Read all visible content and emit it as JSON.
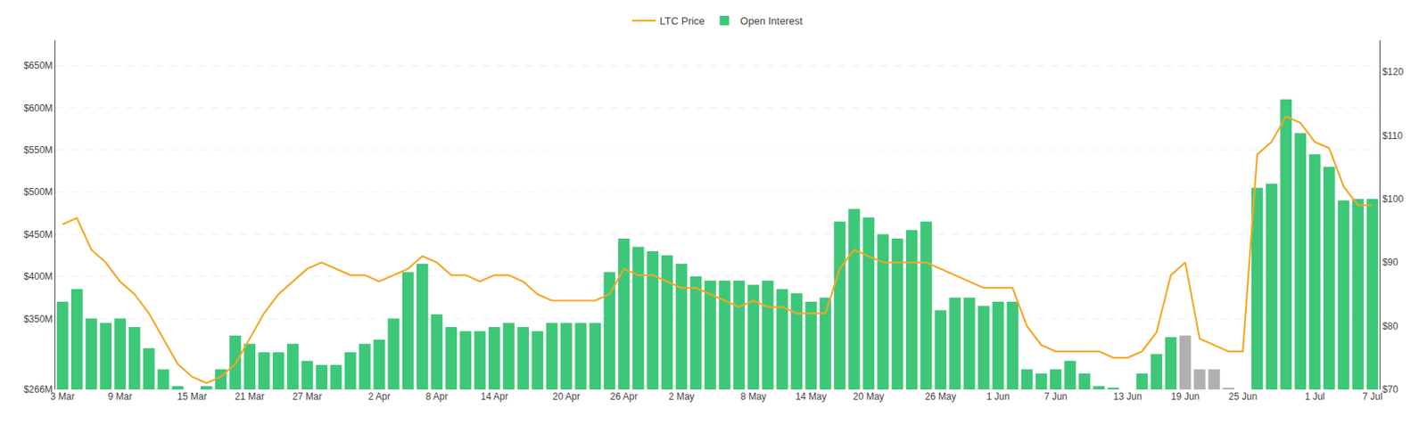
{
  "chart_data": {
    "type": "bar",
    "categories": [
      "3 Mar",
      null,
      null,
      null,
      "9 Mar",
      null,
      null,
      null,
      null,
      "15 Mar",
      null,
      null,
      null,
      "21 Mar",
      null,
      null,
      null,
      "27 Mar",
      null,
      null,
      null,
      null,
      "2 Apr",
      null,
      null,
      null,
      "8 Apr",
      null,
      null,
      null,
      "14 Apr",
      null,
      null,
      null,
      null,
      "20 Apr",
      null,
      null,
      null,
      "26 Apr",
      null,
      null,
      null,
      "2 May",
      null,
      null,
      null,
      null,
      "8 May",
      null,
      null,
      null,
      "14 May",
      null,
      null,
      null,
      "20 May",
      null,
      null,
      null,
      null,
      "26 May",
      null,
      null,
      null,
      "1 Jun",
      null,
      null,
      null,
      "7 Jun",
      null,
      null,
      null,
      null,
      "13 Jun",
      null,
      null,
      null,
      "19 Jun",
      null,
      null,
      null,
      "25 Jun",
      null,
      null,
      null,
      null,
      "1 Jul",
      null,
      null,
      null,
      "7 Jul"
    ],
    "series": [
      {
        "name": "LTC Price",
        "type": "line",
        "axis": "y2",
        "color": "#f5a623",
        "values": [
          96,
          97,
          92,
          90,
          87,
          85,
          82,
          78,
          74,
          72,
          71,
          72,
          74,
          78,
          82,
          85,
          87,
          89,
          90,
          89,
          88,
          88,
          87,
          88,
          89,
          91,
          90,
          88,
          88,
          87,
          88,
          88,
          87,
          85,
          84,
          84,
          84,
          84,
          85,
          89,
          88,
          88,
          87,
          86,
          86,
          85,
          84,
          83,
          84,
          83,
          83,
          82,
          82,
          82,
          89,
          92,
          91,
          90,
          90,
          90,
          90,
          89,
          88,
          87,
          86,
          86,
          86,
          80,
          77,
          76,
          76,
          76,
          76,
          75,
          75,
          76,
          79,
          88,
          90,
          78,
          77,
          76,
          76,
          107,
          109,
          113,
          112,
          109,
          108,
          102,
          99,
          99
        ]
      },
      {
        "name": "Open Interest",
        "type": "bar",
        "colors": [
          "#3cc878",
          "#3cc878",
          "#3cc878",
          "#3cc878",
          "#3cc878",
          "#3cc878",
          "#3cc878",
          "#3cc878",
          "#3cc878",
          "#3cc878",
          "#3cc878",
          "#3cc878",
          "#3cc878",
          "#3cc878",
          "#3cc878",
          "#3cc878",
          "#3cc878",
          "#3cc878",
          "#3cc878",
          "#3cc878",
          "#3cc878",
          "#3cc878",
          "#3cc878",
          "#3cc878",
          "#3cc878",
          "#3cc878",
          "#3cc878",
          "#3cc878",
          "#3cc878",
          "#3cc878",
          "#3cc878",
          "#3cc878",
          "#3cc878",
          "#3cc878",
          "#3cc878",
          "#3cc878",
          "#3cc878",
          "#3cc878",
          "#3cc878",
          "#3cc878",
          "#3cc878",
          "#3cc878",
          "#3cc878",
          "#3cc878",
          "#3cc878",
          "#3cc878",
          "#3cc878",
          "#3cc878",
          "#3cc878",
          "#3cc878",
          "#3cc878",
          "#3cc878",
          "#3cc878",
          "#3cc878",
          "#3cc878",
          "#3cc878",
          "#3cc878",
          "#3cc878",
          "#3cc878",
          "#3cc878",
          "#3cc878",
          "#3cc878",
          "#3cc878",
          "#3cc878",
          "#3cc878",
          "#3cc878",
          "#3cc878",
          "#3cc878",
          "#3cc878",
          "#3cc878",
          "#3cc878",
          "#3cc878",
          "#3cc878",
          "#3cc878",
          "#3cc878",
          "#3cc878",
          "#3cc878",
          "#3cc878",
          "#b0b0b0",
          "#b0b0b0",
          "#b0b0b0",
          "#b0b0b0",
          "#3cc878",
          "#3cc878",
          "#3cc878",
          "#3cc878",
          "#3cc878",
          "#3cc878",
          "#3cc878",
          "#3cc878",
          "#3cc878",
          "#3cc878"
        ],
        "values": [
          370000000,
          385000000,
          350000000,
          345000000,
          350000000,
          340000000,
          315000000,
          290000000,
          270000000,
          266000000,
          270000000,
          290000000,
          330000000,
          320000000,
          310000000,
          310000000,
          320000000,
          300000000,
          295000000,
          295000000,
          310000000,
          320000000,
          325000000,
          350000000,
          405000000,
          415000000,
          355000000,
          340000000,
          335000000,
          335000000,
          340000000,
          345000000,
          340000000,
          335000000,
          345000000,
          345000000,
          345000000,
          345000000,
          405000000,
          445000000,
          435000000,
          430000000,
          425000000,
          415000000,
          400000000,
          395000000,
          395000000,
          395000000,
          390000000,
          395000000,
          385000000,
          380000000,
          370000000,
          375000000,
          465000000,
          480000000,
          470000000,
          450000000,
          445000000,
          455000000,
          465000000,
          360000000,
          375000000,
          375000000,
          365000000,
          370000000,
          370000000,
          290000000,
          285000000,
          290000000,
          300000000,
          285000000,
          270000000,
          268000000,
          266000000,
          285000000,
          308000000,
          328000000,
          330000000,
          290000000,
          290000000,
          268000000,
          266000000,
          505000000,
          510000000,
          610000000,
          570000000,
          545000000,
          530000000,
          490000000,
          492000000,
          492000000
        ]
      }
    ],
    "ylim": [
      266000000,
      680000000
    ],
    "yticks": [
      {
        "value": 266000000,
        "label": "$266M"
      },
      {
        "value": 350000000,
        "label": "$350M"
      },
      {
        "value": 400000000,
        "label": "$400M"
      },
      {
        "value": 450000000,
        "label": "$450M"
      },
      {
        "value": 500000000,
        "label": "$500M"
      },
      {
        "value": 550000000,
        "label": "$550M"
      },
      {
        "value": 600000000,
        "label": "$600M"
      },
      {
        "value": 650000000,
        "label": "$650M"
      }
    ],
    "y2lim": [
      70,
      125
    ],
    "y2ticks": [
      {
        "value": 70,
        "label": "$70"
      },
      {
        "value": 80,
        "label": "$80"
      },
      {
        "value": 90,
        "label": "$90"
      },
      {
        "value": 100,
        "label": "$100"
      },
      {
        "value": 110,
        "label": "$110"
      },
      {
        "value": 120,
        "label": "$120"
      }
    ],
    "grid": true,
    "legend": "top"
  }
}
